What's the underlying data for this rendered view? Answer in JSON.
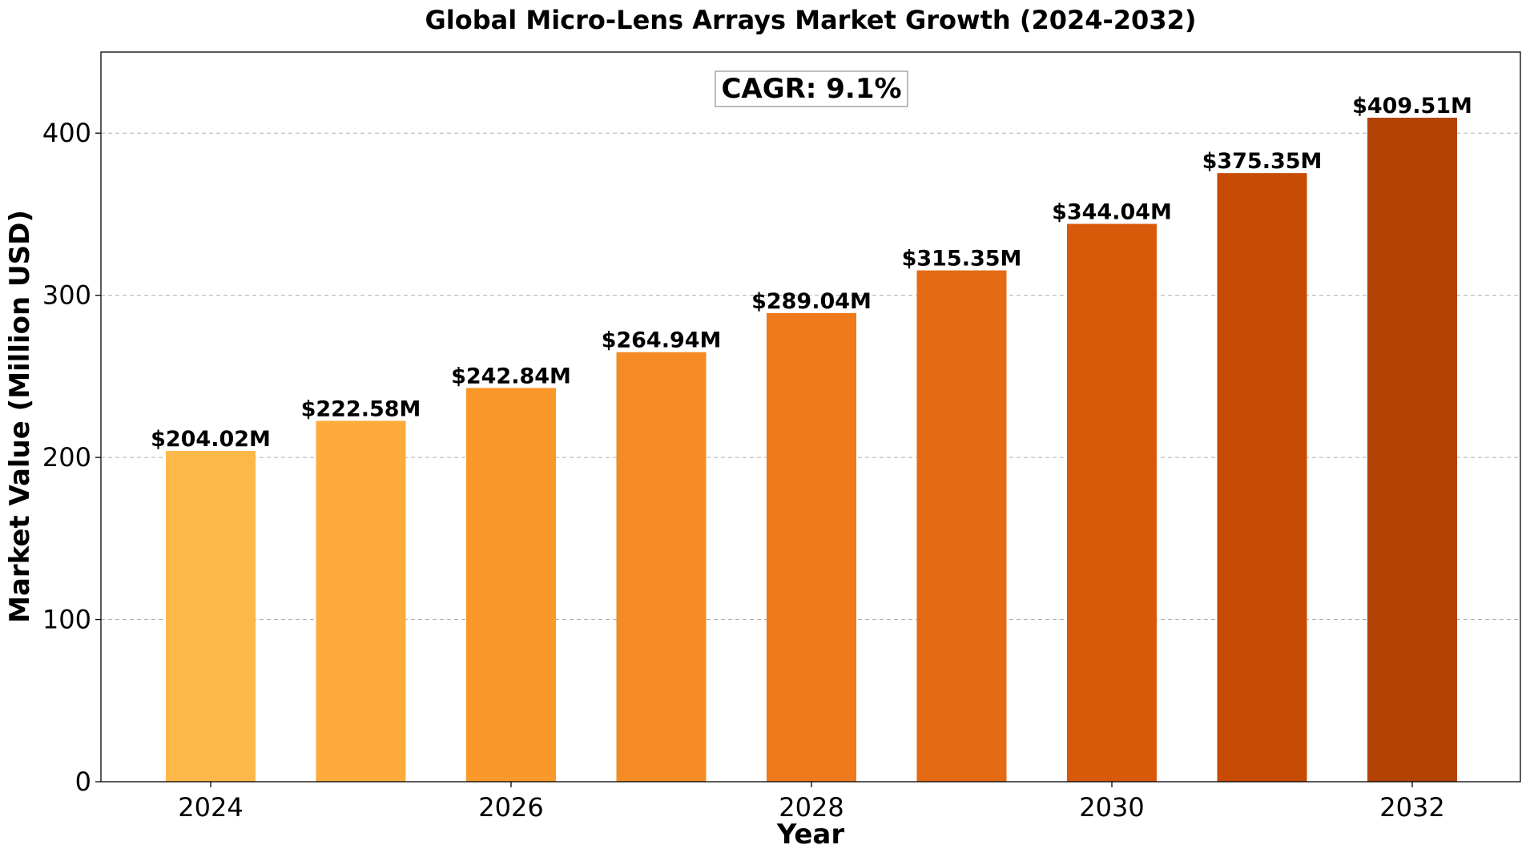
{
  "chart_data": {
    "type": "bar",
    "title": "Global Micro-Lens Arrays Market Growth (2024-2032)",
    "xlabel": "Year",
    "ylabel": "Market Value (Million USD)",
    "categories": [
      2024,
      2025,
      2026,
      2027,
      2028,
      2029,
      2030,
      2031,
      2032
    ],
    "values": [
      204.02,
      222.58,
      242.84,
      264.94,
      289.04,
      315.35,
      344.04,
      375.35,
      409.51
    ],
    "data_labels": [
      "$204.02M",
      "$222.58M",
      "$242.84M",
      "$264.94M",
      "$289.04M",
      "$315.35M",
      "$344.04M",
      "$375.35M",
      "$409.51M"
    ],
    "colors": [
      "#fdb84a",
      "#fcab3c",
      "#fa982a",
      "#f48b24",
      "#ee7a1c",
      "#e56a14",
      "#d9590a",
      "#c84b03",
      "#b34305"
    ],
    "x_tick_labels": [
      "2024",
      "2026",
      "2028",
      "2030",
      "2032"
    ],
    "y_ticks": [
      0,
      100,
      200,
      300,
      400
    ],
    "ylim": [
      0,
      450
    ],
    "grid": "y-dashed",
    "annotation": "CAGR: 9.1%"
  }
}
